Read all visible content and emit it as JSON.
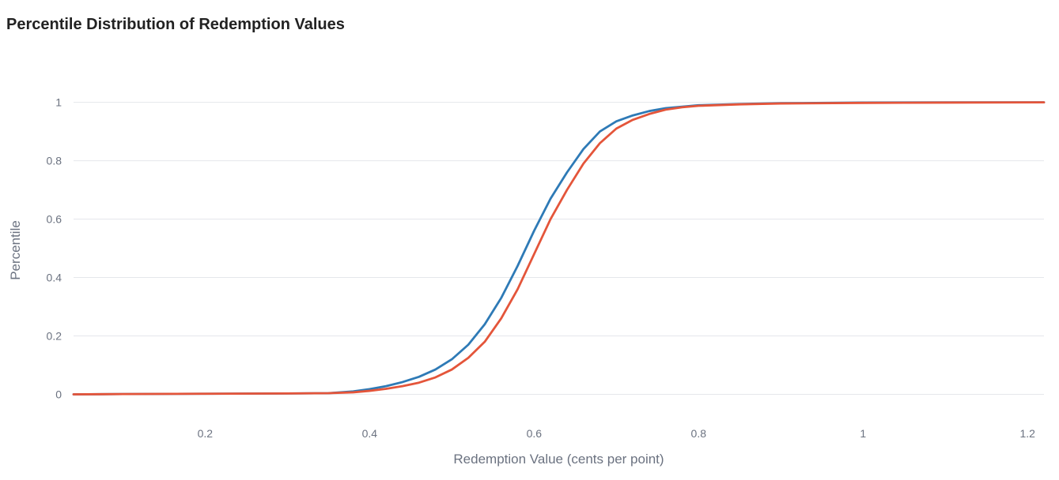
{
  "chart_data": {
    "type": "line",
    "title": "Percentile Distribution of Redemption Values",
    "xlabel": "Redemption Value (cents per point)",
    "ylabel": "Percentile",
    "xlim": [
      0.04,
      1.22
    ],
    "ylim": [
      -0.05,
      1.08
    ],
    "x_ticks": [
      0.2,
      0.4,
      0.6,
      0.8,
      1,
      1.2
    ],
    "y_ticks": [
      0,
      0.2,
      0.4,
      0.6,
      0.8,
      1
    ],
    "grid": true,
    "legend": "none",
    "series": [
      {
        "color": "#2e7ab6",
        "x": [
          0.04,
          0.1,
          0.2,
          0.3,
          0.35,
          0.38,
          0.4,
          0.42,
          0.44,
          0.46,
          0.48,
          0.5,
          0.52,
          0.54,
          0.56,
          0.58,
          0.6,
          0.62,
          0.64,
          0.66,
          0.68,
          0.7,
          0.72,
          0.74,
          0.76,
          0.78,
          0.8,
          0.85,
          0.9,
          1.0,
          1.1,
          1.22
        ],
        "y": [
          0,
          0.001,
          0.002,
          0.003,
          0.004,
          0.01,
          0.018,
          0.028,
          0.042,
          0.06,
          0.085,
          0.12,
          0.17,
          0.24,
          0.33,
          0.44,
          0.56,
          0.67,
          0.76,
          0.84,
          0.9,
          0.935,
          0.955,
          0.97,
          0.98,
          0.985,
          0.99,
          0.994,
          0.997,
          0.999,
          1.0,
          1.0
        ]
      },
      {
        "color": "#e4553a",
        "x": [
          0.04,
          0.1,
          0.2,
          0.3,
          0.35,
          0.38,
          0.4,
          0.42,
          0.44,
          0.46,
          0.48,
          0.5,
          0.52,
          0.54,
          0.56,
          0.58,
          0.6,
          0.62,
          0.64,
          0.66,
          0.68,
          0.7,
          0.72,
          0.74,
          0.76,
          0.78,
          0.8,
          0.85,
          0.9,
          1.0,
          1.1,
          1.22
        ],
        "y": [
          0,
          0.001,
          0.002,
          0.003,
          0.004,
          0.007,
          0.012,
          0.019,
          0.028,
          0.04,
          0.058,
          0.085,
          0.125,
          0.18,
          0.26,
          0.36,
          0.48,
          0.6,
          0.7,
          0.79,
          0.86,
          0.91,
          0.94,
          0.96,
          0.975,
          0.983,
          0.988,
          0.993,
          0.996,
          0.998,
          0.999,
          1.0
        ]
      }
    ]
  }
}
